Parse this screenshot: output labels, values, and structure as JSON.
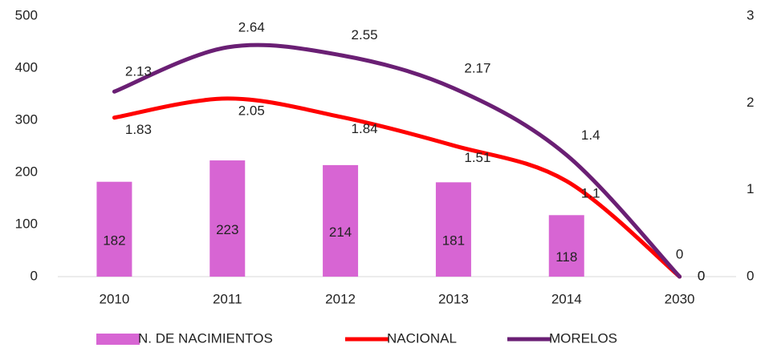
{
  "chart_data": {
    "type": "bar_line",
    "categories": [
      "2010",
      "2011",
      "2012",
      "2013",
      "2014",
      "2030"
    ],
    "series": [
      {
        "name": "N. DE NACIMIENTOS",
        "type": "bar",
        "color": "#d765d3",
        "values": [
          182,
          223,
          214,
          181,
          118,
          0
        ]
      },
      {
        "name": "NACIONAL",
        "type": "line",
        "axis": "y2",
        "color": "#ff0000",
        "values": [
          1.83,
          2.05,
          1.84,
          1.51,
          1.1,
          0
        ]
      },
      {
        "name": "MORELOS",
        "type": "line",
        "axis": "y2",
        "color": "#6a1f74",
        "values": [
          2.13,
          2.64,
          2.55,
          2.17,
          1.4,
          0
        ]
      }
    ],
    "ylim": [
      0,
      500
    ],
    "yticks": [
      0,
      100,
      200,
      300,
      400,
      500
    ],
    "y2lim": [
      0,
      3
    ],
    "y2ticks": [
      0,
      1,
      2,
      3
    ],
    "legend": "bottom"
  }
}
